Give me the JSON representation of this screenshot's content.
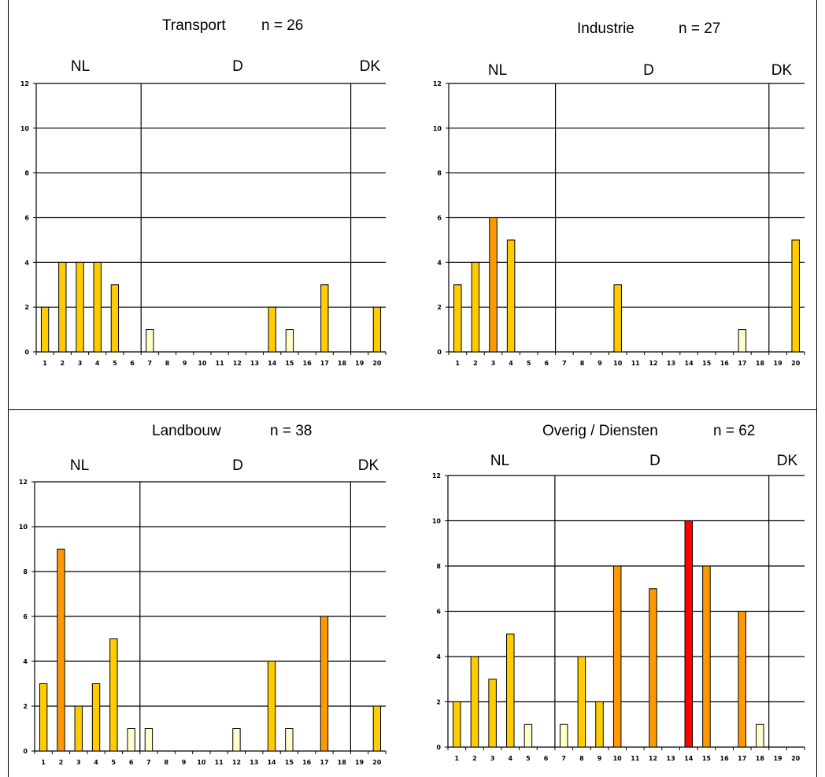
{
  "colors": {
    "pale": "#ffffcc",
    "yellow": "#ffcc00",
    "orange": "#ff9900",
    "red": "#ff0000",
    "axis": "#000000"
  },
  "x_tick_labels": [
    "1",
    "2",
    "3",
    "4",
    "5",
    "6",
    "7",
    "8",
    "9",
    "10",
    "11",
    "12",
    "13",
    "14",
    "15",
    "16",
    "17",
    "18",
    "19",
    "20"
  ],
  "region_labels": [
    "NL",
    "D",
    "DK"
  ],
  "chart_data": [
    {
      "type": "bar",
      "title": "Transport",
      "n_label": "n = 26",
      "ylim": [
        0,
        12
      ],
      "yticks": [
        0,
        2,
        4,
        6,
        8,
        10,
        12
      ],
      "x": [
        1,
        2,
        3,
        4,
        5,
        7,
        14,
        15,
        17,
        20
      ],
      "values": [
        2,
        4,
        4,
        4,
        3,
        1,
        2,
        1,
        3,
        2
      ],
      "bar_colors": [
        "yellow",
        "yellow",
        "yellow",
        "yellow",
        "yellow",
        "pale",
        "yellow",
        "pale",
        "yellow",
        "yellow"
      ],
      "grid": true
    },
    {
      "type": "bar",
      "title": "Industrie",
      "n_label": "n = 27",
      "ylim": [
        0,
        12
      ],
      "yticks": [
        0,
        2,
        4,
        6,
        8,
        10,
        12
      ],
      "x": [
        1,
        2,
        3,
        4,
        10,
        17,
        20
      ],
      "values": [
        3,
        4,
        6,
        5,
        3,
        1,
        5
      ],
      "bar_colors": [
        "yellow",
        "yellow",
        "orange",
        "yellow",
        "yellow",
        "pale",
        "yellow"
      ],
      "grid": true
    },
    {
      "type": "bar",
      "title": "Landbouw",
      "n_label": "n = 38",
      "ylim": [
        0,
        12
      ],
      "yticks": [
        0,
        2,
        4,
        6,
        8,
        10,
        12
      ],
      "x": [
        1,
        2,
        3,
        4,
        5,
        6,
        7,
        12,
        14,
        15,
        17,
        20
      ],
      "values": [
        3,
        9,
        2,
        3,
        5,
        1,
        1,
        1,
        4,
        1,
        6,
        2
      ],
      "bar_colors": [
        "yellow",
        "orange",
        "yellow",
        "yellow",
        "yellow",
        "pale",
        "pale",
        "pale",
        "yellow",
        "pale",
        "orange",
        "yellow"
      ],
      "grid": true
    },
    {
      "type": "bar",
      "title": "Overig / Diensten",
      "n_label": "n = 62",
      "ylim": [
        0,
        12
      ],
      "yticks": [
        0,
        2,
        4,
        6,
        8,
        10,
        12
      ],
      "x": [
        1,
        2,
        3,
        4,
        5,
        7,
        8,
        9,
        10,
        12,
        14,
        15,
        17,
        18
      ],
      "values": [
        2,
        4,
        3,
        5,
        1,
        1,
        4,
        2,
        8,
        7,
        10,
        8,
        6,
        1
      ],
      "bar_colors": [
        "yellow",
        "yellow",
        "yellow",
        "yellow",
        "pale",
        "pale",
        "yellow",
        "yellow",
        "orange",
        "orange",
        "red",
        "orange",
        "orange",
        "pale"
      ],
      "grid": true
    }
  ]
}
